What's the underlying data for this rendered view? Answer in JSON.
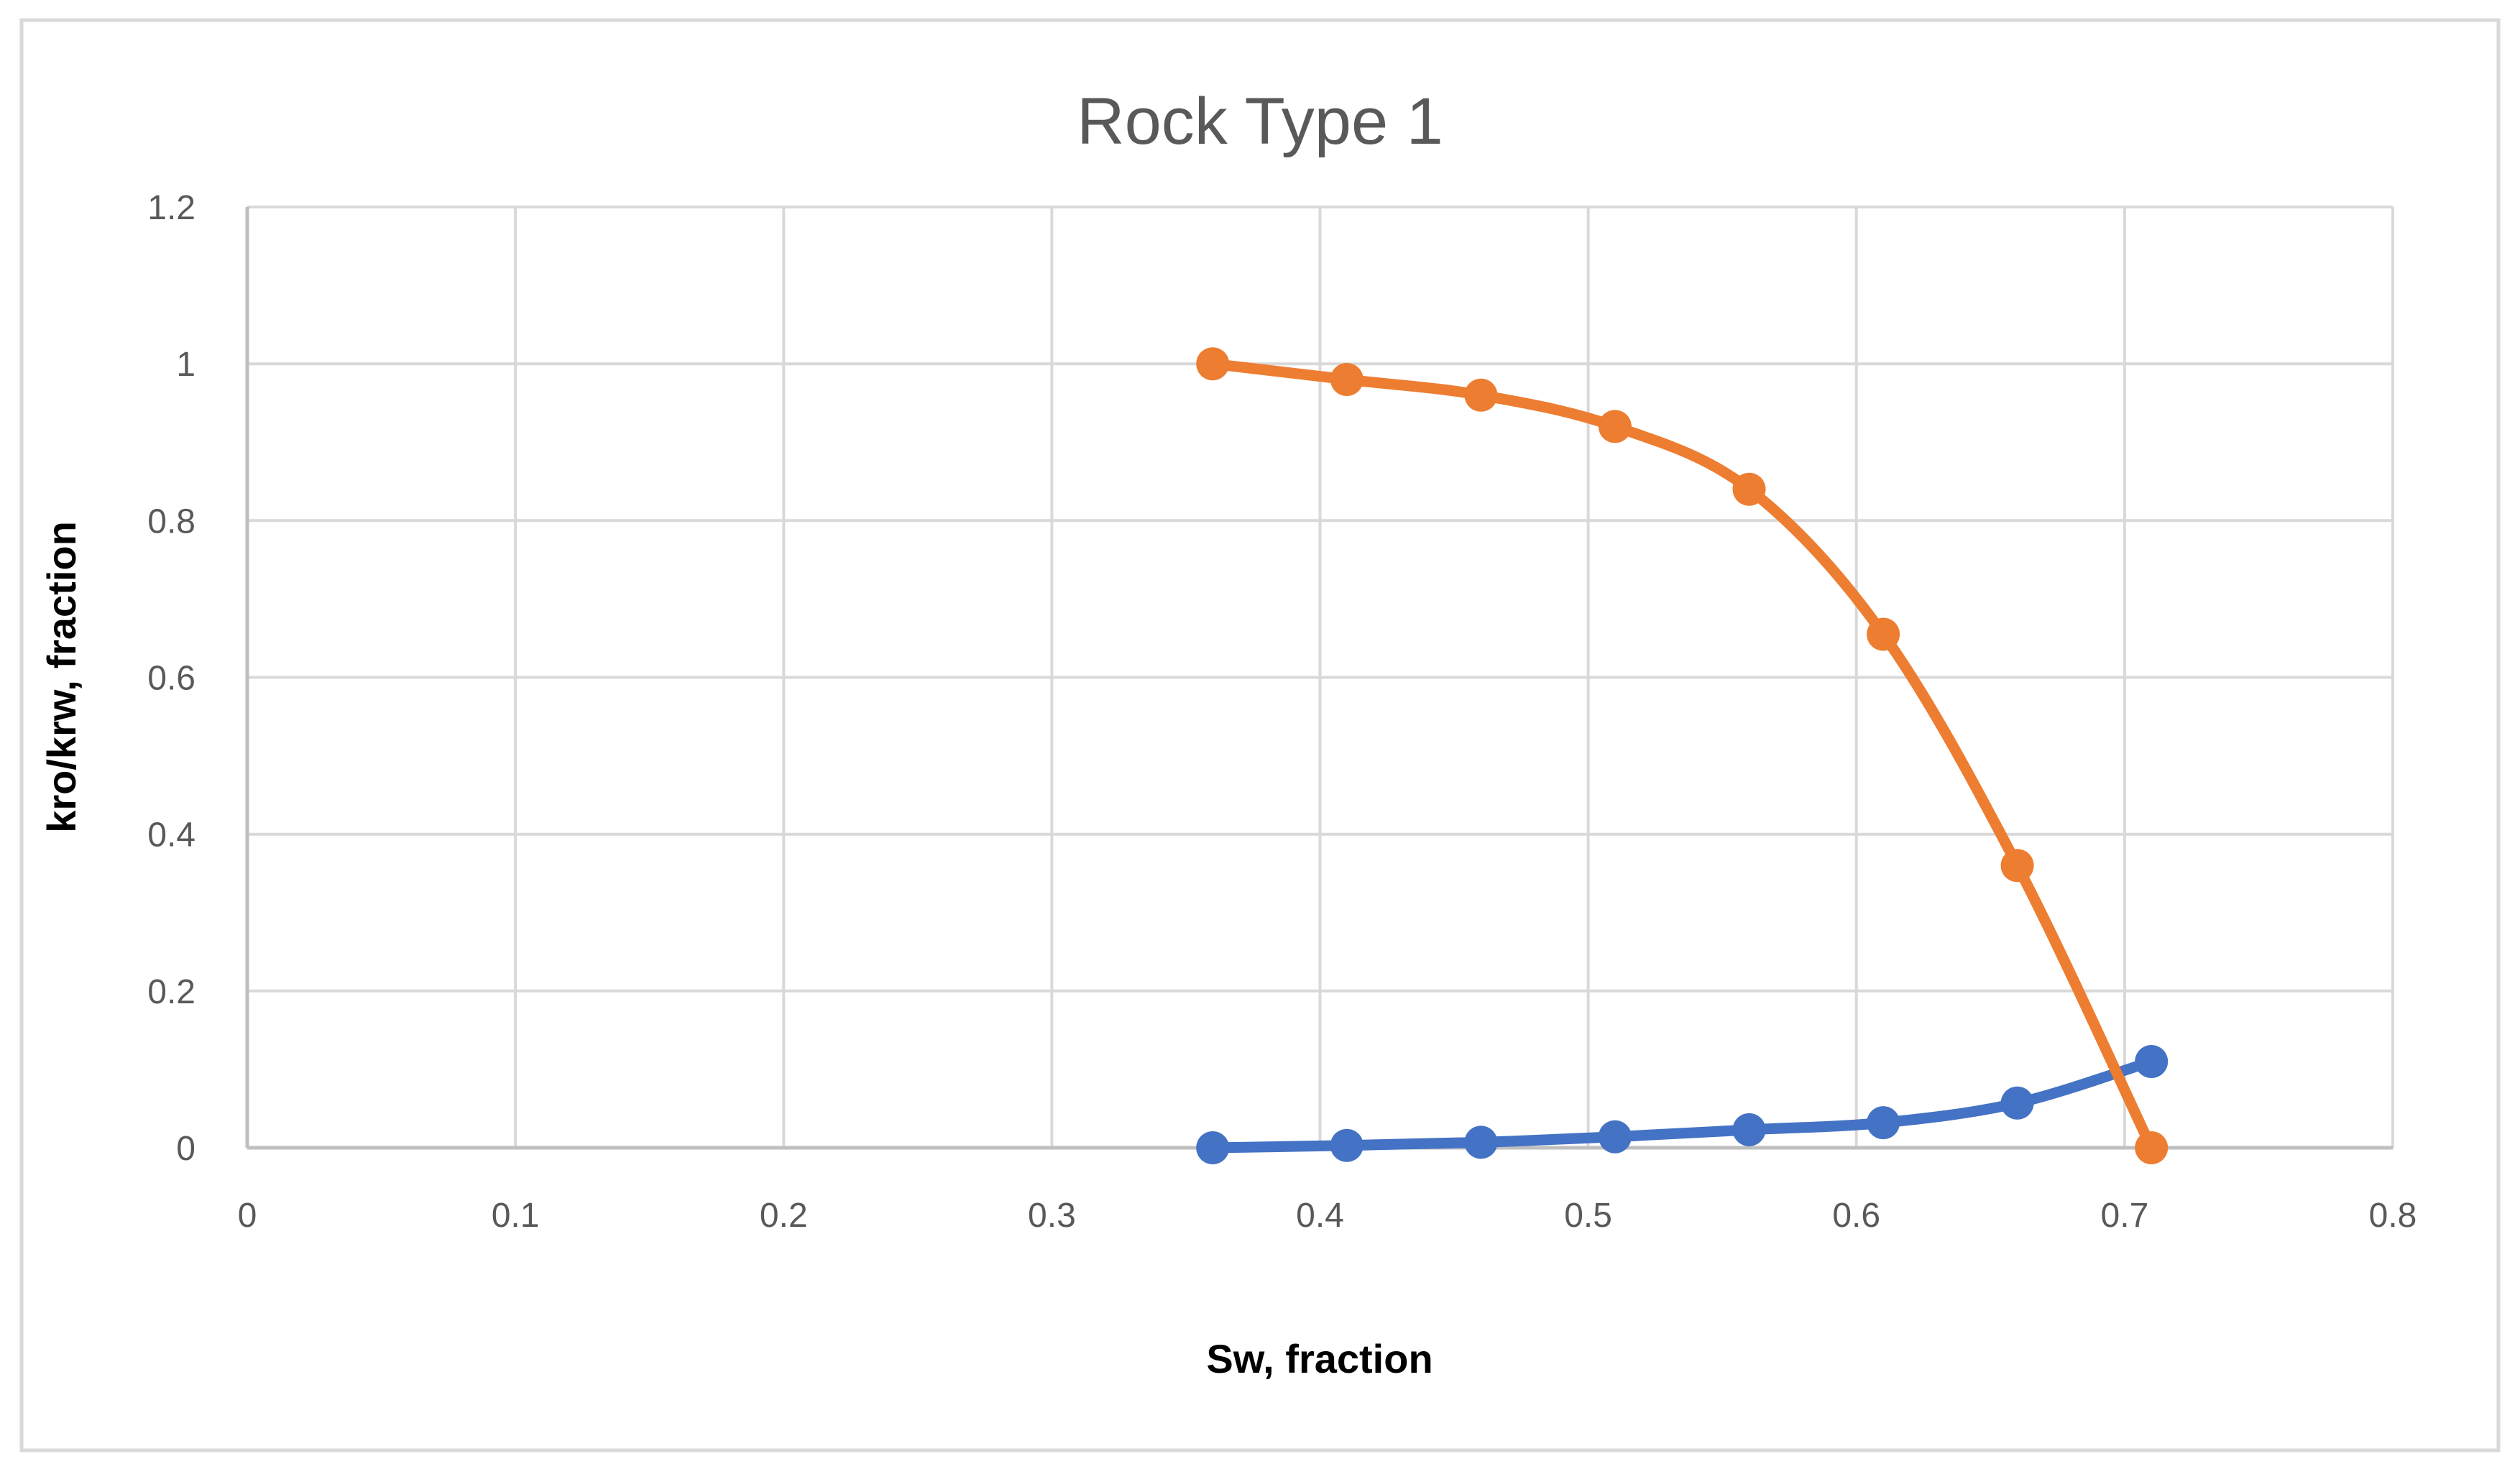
{
  "chart": {
    "title": "Rock Type 1",
    "x_axis": {
      "label": "Sw, fraction",
      "ticks": [
        "0",
        "0.1",
        "0.2",
        "0.3",
        "0.4",
        "0.5",
        "0.6",
        "0.7",
        "0.8"
      ]
    },
    "y_axis": {
      "label": "kro/krw, fraction",
      "ticks": [
        "0",
        "0.2",
        "0.4",
        "0.6",
        "0.8",
        "1",
        "1.2"
      ]
    },
    "colors": {
      "series_kro": "#ED7D31",
      "series_krw": "#4472C4",
      "gridline": "#D9D9D9",
      "axis_line": "#BFBFBF",
      "tick_text": "#595959",
      "title_text": "#595959",
      "outer_border": "#D9D9D9"
    }
  },
  "chart_data": {
    "type": "line",
    "title": "Rock Type 1",
    "xlabel": "Sw, fraction",
    "ylabel": "kro/krw, fraction",
    "x": [
      0.36,
      0.41,
      0.46,
      0.51,
      0.56,
      0.61,
      0.66,
      0.71
    ],
    "series": [
      {
        "name": "krw",
        "color": "#4472C4",
        "values": [
          0.0,
          0.003,
          0.007,
          0.014,
          0.023,
          0.032,
          0.057,
          0.11
        ]
      },
      {
        "name": "kro",
        "color": "#ED7D31",
        "values": [
          1.0,
          0.98,
          0.96,
          0.92,
          0.84,
          0.655,
          0.36,
          0.0
        ]
      }
    ],
    "xlim": [
      0,
      0.8
    ],
    "ylim": [
      0,
      1.2
    ],
    "grid": true,
    "legend": "none",
    "markers": true,
    "smooth": true
  }
}
